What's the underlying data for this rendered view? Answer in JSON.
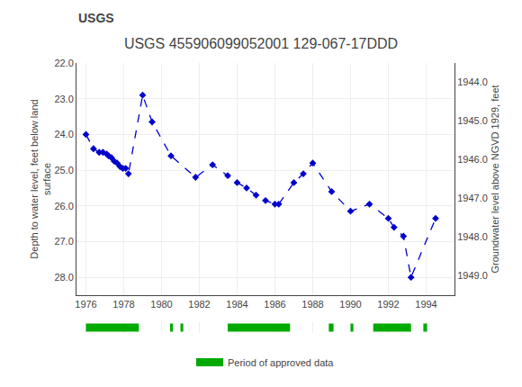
{
  "chart_data": {
    "type": "line",
    "title": "USGS 455906099052001 129-067-17DDD",
    "ylabel": "Depth to water level, feet below land\nsurface",
    "y2label": "Groundwater level above NGVD 1929, feet",
    "x": [
      1976.0,
      1976.4,
      1976.7,
      1976.9,
      1977.1,
      1977.2,
      1977.35,
      1977.5,
      1977.65,
      1977.8,
      1977.95,
      1978.1,
      1978.25,
      1979.0,
      1979.5,
      1980.5,
      1981.8,
      1982.7,
      1983.5,
      1984.0,
      1984.5,
      1985.0,
      1985.5,
      1986.0,
      1986.2,
      1987.0,
      1987.5,
      1988.0,
      1989.0,
      1990.0,
      1991.0,
      1992.0,
      1992.3,
      1992.8,
      1993.2,
      1994.5
    ],
    "series": [
      {
        "values": [
          24.0,
          24.4,
          24.5,
          24.5,
          24.55,
          24.6,
          24.65,
          24.75,
          24.8,
          24.9,
          24.95,
          24.95,
          25.1,
          22.9,
          23.65,
          24.6,
          25.2,
          24.85,
          25.15,
          25.35,
          25.5,
          25.7,
          25.85,
          25.95,
          25.95,
          25.35,
          25.1,
          24.8,
          25.6,
          26.15,
          25.95,
          26.35,
          26.6,
          26.85,
          28.0,
          26.35
        ],
        "color": "#0000cc",
        "marker": "diamond",
        "line_style": "dash"
      },
      {
        "name": "Period of approved data",
        "type": "range",
        "color": "#00aa00",
        "ranges": [
          [
            1976.0,
            1978.8
          ],
          [
            1980.45,
            1980.6
          ],
          [
            1981.0,
            1981.15
          ],
          [
            1983.5,
            1986.8
          ],
          [
            1988.85,
            1989.1
          ],
          [
            1990.0,
            1990.15
          ],
          [
            1991.2,
            1993.2
          ],
          [
            1993.85,
            1994.05
          ]
        ]
      }
    ],
    "xlim": [
      1975.5,
      1995.5
    ],
    "xticks": [
      1976,
      1978,
      1980,
      1982,
      1984,
      1986,
      1988,
      1990,
      1992,
      1994
    ],
    "ylim": [
      28.5,
      22.0
    ],
    "yticks": [
      {
        "value": 22.0,
        "label": "22.0"
      },
      {
        "value": 23.0,
        "label": "23.0"
      },
      {
        "value": 24.0,
        "label": "24.0"
      },
      {
        "value": 25.0,
        "label": "25.0"
      },
      {
        "value": 26.0,
        "label": "26.0"
      },
      {
        "value": 27.0,
        "label": "27.0"
      },
      {
        "value": 28.0,
        "label": "28.0"
      }
    ],
    "y2lim": [
      1949.5,
      1943.5
    ],
    "y2ticks": [
      {
        "value": 1944.0,
        "label": "1944.0"
      },
      {
        "value": 1945.0,
        "label": "1945.0"
      },
      {
        "value": 1946.0,
        "label": "1946.0"
      },
      {
        "value": 1947.0,
        "label": "1947.0"
      },
      {
        "value": 1948.0,
        "label": "1948.0"
      },
      {
        "value": 1949.0,
        "label": "1949.0"
      }
    ],
    "grid": true,
    "legend": "bottom",
    "annotations": [
      {
        "text": "USGS"
      }
    ]
  }
}
